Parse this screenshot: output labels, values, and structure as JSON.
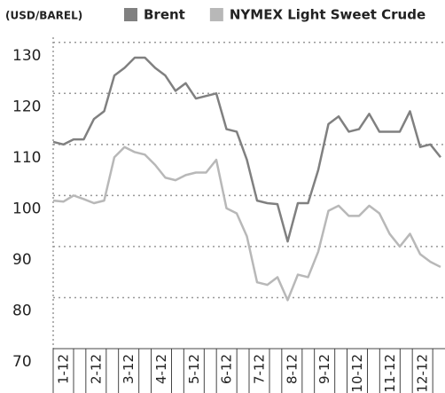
{
  "chart_data": {
    "type": "line",
    "unit_label": "(USD/BAREL)",
    "x_tick_labels": [
      "1-12",
      "2-12",
      "3-12",
      "4-12",
      "5-12",
      "6-12",
      "7-12",
      "8-12",
      "9-12",
      "10-12",
      "11-12",
      "12-12"
    ],
    "series": [
      {
        "name": "Brent",
        "color": "#808080",
        "values": [
          110.5,
          110,
          111,
          111,
          115,
          116.5,
          123.5,
          125,
          127,
          127,
          125,
          123.5,
          120.5,
          122,
          119,
          119.5,
          120,
          113,
          112.5,
          107,
          99,
          98.5,
          98.3,
          91,
          98.5,
          98.5,
          105,
          114,
          115.5,
          112.5,
          113,
          116,
          112.5,
          112.5,
          112.5,
          116.5,
          109.5,
          110,
          107.5
        ]
      },
      {
        "name": "NYMEX Light Sweet Crude",
        "color": "#b8b8b8",
        "values": [
          99,
          98.8,
          100,
          99.3,
          98.5,
          99,
          107.5,
          109.5,
          108.5,
          108,
          106,
          103.5,
          103,
          104,
          104.5,
          104.5,
          107,
          97.5,
          96.5,
          92,
          83,
          82.5,
          84,
          79.5,
          84.5,
          84,
          89,
          97,
          98,
          96,
          96,
          98,
          96.5,
          92.5,
          90,
          92.5,
          88.5,
          87,
          86
        ]
      }
    ],
    "ylim": [
      70,
      131
    ],
    "yticks": [
      70,
      80,
      90,
      100,
      110,
      120,
      130
    ],
    "grid": true
  }
}
